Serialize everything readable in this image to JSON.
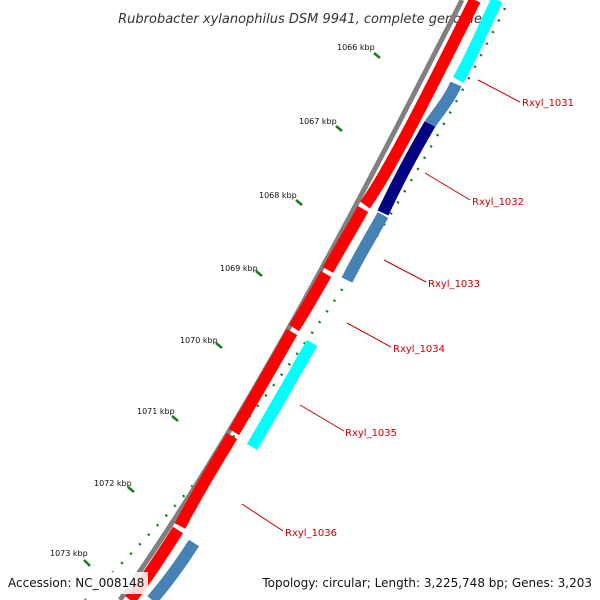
{
  "title": "Rubrobacter xylanophilus DSM 9941, complete genome",
  "footer": {
    "accession": "Accession: NC_008148",
    "summary": "Topology: circular; Length: 3,225,748 bp; Genes: 3,203"
  },
  "colors": {
    "backbone": "#808080",
    "forward_gene": "#ff0000",
    "reverse_gene": "#4682b4",
    "highlight_gene": "#00ffff",
    "dark_gene": "#000080",
    "ticks": "#1a7a1a",
    "label": "#cc0000"
  },
  "ticks": [
    {
      "label": "1066 kbp"
    },
    {
      "label": "1067 kbp"
    },
    {
      "label": "1068 kbp"
    },
    {
      "label": "1069 kbp"
    },
    {
      "label": "1070 kbp"
    },
    {
      "label": "1071 kbp"
    },
    {
      "label": "1072 kbp"
    },
    {
      "label": "1073 kbp"
    }
  ],
  "genes": [
    {
      "name": "Rxyl_1031"
    },
    {
      "name": "Rxyl_1032"
    },
    {
      "name": "Rxyl_1033"
    },
    {
      "name": "Rxyl_1034"
    },
    {
      "name": "Rxyl_1035"
    },
    {
      "name": "Rxyl_1036"
    }
  ]
}
